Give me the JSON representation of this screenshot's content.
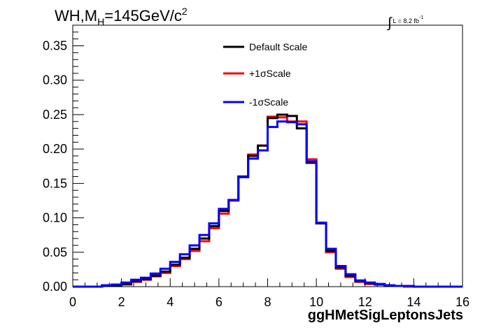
{
  "title": {
    "main": "WH,M",
    "sub": "H",
    "value": "=145GeV/c",
    "sup": "2"
  },
  "lumi": {
    "symbol": "∫",
    "text": "L = 8.2 fb",
    "sup": "-1"
  },
  "chart_data": {
    "type": "line",
    "style": "step-histogram",
    "xlabel": "ggHMetSigLeptonsJets",
    "ylabel": "",
    "xlim": [
      0,
      16
    ],
    "ylim": [
      0,
      0.38
    ],
    "xticks": [
      0,
      2,
      4,
      6,
      8,
      10,
      12,
      14,
      16
    ],
    "xtick_labels": [
      "0",
      "2",
      "4",
      "6",
      "8",
      "10",
      "12",
      "14",
      "16"
    ],
    "yticks": [
      0,
      0.05,
      0.1,
      0.15,
      0.2,
      0.25,
      0.3,
      0.35
    ],
    "ytick_labels": [
      "0.00",
      "0.05",
      "0.10",
      "0.15",
      "0.20",
      "0.25",
      "0.30",
      "0.35"
    ],
    "grid": false,
    "legend_position": "top-center",
    "bin_edges": [
      0,
      0.4,
      0.8,
      1.2,
      1.6,
      2.0,
      2.4,
      2.8,
      3.2,
      3.6,
      4.0,
      4.4,
      4.8,
      5.2,
      5.6,
      6.0,
      6.4,
      6.8,
      7.2,
      7.6,
      8.0,
      8.4,
      8.8,
      9.2,
      9.6,
      10.0,
      10.4,
      10.8,
      11.2,
      11.6,
      12.0,
      12.4,
      12.8,
      13.2,
      13.6,
      14.0,
      14.4,
      14.8,
      15.2,
      15.6,
      16.0
    ],
    "series": [
      {
        "name": "Default Scale",
        "color": "#000000",
        "values": [
          0.0,
          0.0,
          0.0,
          0.001,
          0.002,
          0.004,
          0.008,
          0.011,
          0.016,
          0.022,
          0.032,
          0.042,
          0.055,
          0.07,
          0.088,
          0.11,
          0.126,
          0.16,
          0.19,
          0.205,
          0.245,
          0.25,
          0.248,
          0.23,
          0.18,
          0.092,
          0.052,
          0.028,
          0.016,
          0.008,
          0.005,
          0.003,
          0.002,
          0.001,
          0.001,
          0.0,
          0.0,
          0.0,
          0.0,
          0.0
        ]
      },
      {
        "name": "+1σScale",
        "color": "#ff0000",
        "values": [
          0.0,
          0.0,
          0.0,
          0.001,
          0.002,
          0.003,
          0.007,
          0.01,
          0.015,
          0.02,
          0.03,
          0.04,
          0.052,
          0.066,
          0.085,
          0.106,
          0.125,
          0.16,
          0.192,
          0.205,
          0.247,
          0.246,
          0.24,
          0.24,
          0.185,
          0.092,
          0.05,
          0.026,
          0.014,
          0.007,
          0.004,
          0.003,
          0.002,
          0.001,
          0.0,
          0.0,
          0.0,
          0.0,
          0.0,
          0.0
        ]
      },
      {
        "name": "-1σScale",
        "color": "#0000ff",
        "values": [
          0.0,
          0.0,
          0.0,
          0.002,
          0.003,
          0.006,
          0.01,
          0.013,
          0.019,
          0.026,
          0.036,
          0.047,
          0.06,
          0.075,
          0.092,
          0.113,
          0.126,
          0.159,
          0.186,
          0.198,
          0.232,
          0.24,
          0.239,
          0.236,
          0.182,
          0.093,
          0.055,
          0.03,
          0.018,
          0.009,
          0.006,
          0.004,
          0.002,
          0.001,
          0.001,
          0.0,
          0.0,
          0.0,
          0.0,
          0.0
        ]
      }
    ]
  }
}
